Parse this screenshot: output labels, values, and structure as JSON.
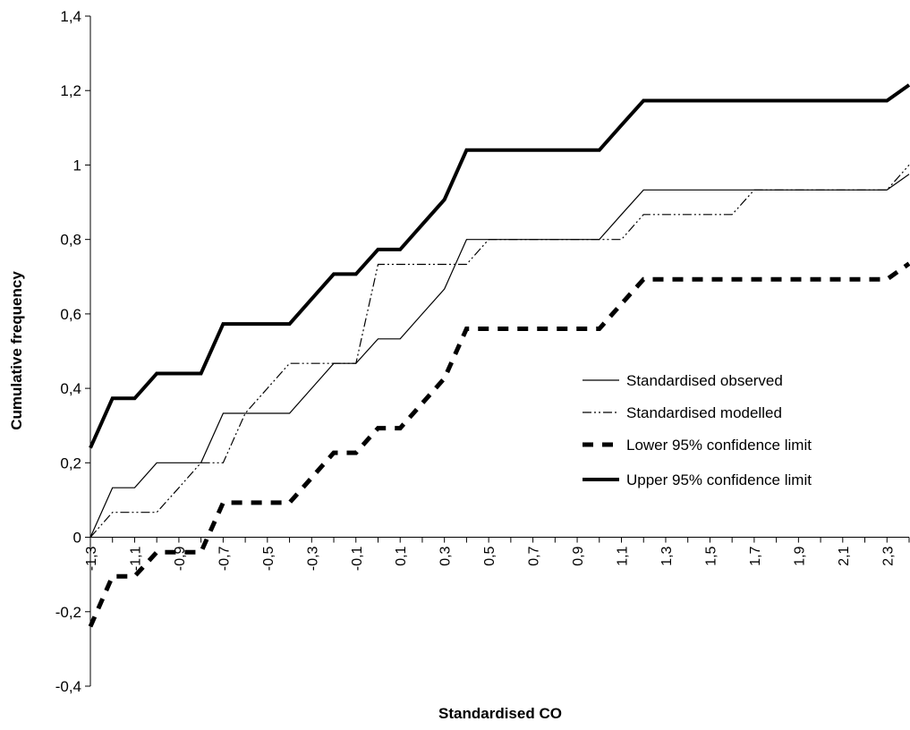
{
  "chart_data": {
    "type": "line",
    "xlabel": "Standardised CO",
    "ylabel": "Cumulative frequency",
    "ylim": [
      -0.4,
      1.4
    ],
    "xlim": [
      -1.3,
      2.4
    ],
    "y_ticks": [
      "-0,4",
      "-0,2",
      "0",
      "0,2",
      "0,4",
      "0,6",
      "0,8",
      "1",
      "1,2",
      "1,4"
    ],
    "x_ticks": [
      "-1,3",
      "-1,1",
      "-0,9",
      "-0,7",
      "-0,5",
      "-0,3",
      "-0,1",
      "0,1",
      "0,3",
      "0,5",
      "0,7",
      "0,9",
      "1,1",
      "1,3",
      "1,5",
      "1,7",
      "1,9",
      "2,1",
      "2,3"
    ],
    "grid": false,
    "legend_position": "right",
    "series": [
      {
        "name": "Standardised observed",
        "style": "solid-thin",
        "x": [
          -1.3,
          -1.2,
          -1.1,
          -1.0,
          -0.9,
          -0.8,
          -0.7,
          -0.6,
          -0.5,
          -0.4,
          -0.3,
          -0.2,
          -0.1,
          0.0,
          0.1,
          0.2,
          0.3,
          0.4,
          0.5,
          0.6,
          0.7,
          0.8,
          0.9,
          1.0,
          1.1,
          1.2,
          1.3,
          1.4,
          1.5,
          1.6,
          1.7,
          1.8,
          1.9,
          2.0,
          2.1,
          2.2,
          2.3,
          2.4
        ],
        "values": [
          0,
          0.133,
          0.133,
          0.2,
          0.2,
          0.2,
          0.333,
          0.333,
          0.333,
          0.333,
          0.4,
          0.467,
          0.467,
          0.533,
          0.533,
          0.6,
          0.667,
          0.8,
          0.8,
          0.8,
          0.8,
          0.8,
          0.8,
          0.8,
          0.867,
          0.933,
          0.933,
          0.933,
          0.933,
          0.933,
          0.933,
          0.933,
          0.933,
          0.933,
          0.933,
          0.933,
          0.933,
          0.975
        ]
      },
      {
        "name": "Standardised modelled",
        "style": "dash-dot",
        "x": [
          -1.3,
          -1.2,
          -1.1,
          -1.0,
          -0.9,
          -0.8,
          -0.7,
          -0.6,
          -0.5,
          -0.4,
          -0.3,
          -0.2,
          -0.1,
          0.0,
          0.1,
          0.2,
          0.3,
          0.4,
          0.5,
          0.6,
          0.7,
          0.8,
          0.9,
          1.0,
          1.1,
          1.2,
          1.3,
          1.4,
          1.5,
          1.6,
          1.7,
          1.8,
          1.9,
          2.0,
          2.1,
          2.2,
          2.3,
          2.4
        ],
        "values": [
          0,
          0.067,
          0.067,
          0.067,
          0.133,
          0.2,
          0.2,
          0.333,
          0.4,
          0.467,
          0.467,
          0.467,
          0.467,
          0.733,
          0.733,
          0.733,
          0.733,
          0.733,
          0.8,
          0.8,
          0.8,
          0.8,
          0.8,
          0.8,
          0.8,
          0.867,
          0.867,
          0.867,
          0.867,
          0.867,
          0.933,
          0.933,
          0.933,
          0.933,
          0.933,
          0.933,
          0.933,
          1.0
        ]
      },
      {
        "name": "Lower 95% confidence limit",
        "style": "dashed-thick",
        "x": [
          -1.3,
          -1.2,
          -1.1,
          -1.0,
          -0.9,
          -0.8,
          -0.7,
          -0.6,
          -0.5,
          -0.4,
          -0.3,
          -0.2,
          -0.1,
          0.0,
          0.1,
          0.2,
          0.3,
          0.4,
          0.5,
          0.6,
          0.7,
          0.8,
          0.9,
          1.0,
          1.1,
          1.2,
          1.3,
          1.4,
          1.5,
          1.6,
          1.7,
          1.8,
          1.9,
          2.0,
          2.1,
          2.2,
          2.3,
          2.4
        ],
        "values": [
          -0.24,
          -0.105,
          -0.105,
          -0.04,
          -0.04,
          -0.04,
          0.093,
          0.093,
          0.093,
          0.093,
          0.16,
          0.227,
          0.227,
          0.293,
          0.293,
          0.36,
          0.427,
          0.56,
          0.56,
          0.56,
          0.56,
          0.56,
          0.56,
          0.56,
          0.627,
          0.693,
          0.693,
          0.693,
          0.693,
          0.693,
          0.693,
          0.693,
          0.693,
          0.693,
          0.693,
          0.693,
          0.693,
          0.735
        ]
      },
      {
        "name": "Upper 95% confidence limit",
        "style": "solid-thick",
        "x": [
          -1.3,
          -1.2,
          -1.1,
          -1.0,
          -0.9,
          -0.8,
          -0.7,
          -0.6,
          -0.5,
          -0.4,
          -0.3,
          -0.2,
          -0.1,
          0.0,
          0.1,
          0.2,
          0.3,
          0.4,
          0.5,
          0.6,
          0.7,
          0.8,
          0.9,
          1.0,
          1.1,
          1.2,
          1.3,
          1.4,
          1.5,
          1.6,
          1.7,
          1.8,
          1.9,
          2.0,
          2.1,
          2.2,
          2.3,
          2.4
        ],
        "values": [
          0.24,
          0.373,
          0.373,
          0.44,
          0.44,
          0.44,
          0.573,
          0.573,
          0.573,
          0.573,
          0.64,
          0.707,
          0.707,
          0.773,
          0.773,
          0.84,
          0.907,
          1.04,
          1.04,
          1.04,
          1.04,
          1.04,
          1.04,
          1.04,
          1.107,
          1.173,
          1.173,
          1.173,
          1.173,
          1.173,
          1.173,
          1.173,
          1.173,
          1.173,
          1.173,
          1.173,
          1.173,
          1.215
        ]
      }
    ]
  }
}
